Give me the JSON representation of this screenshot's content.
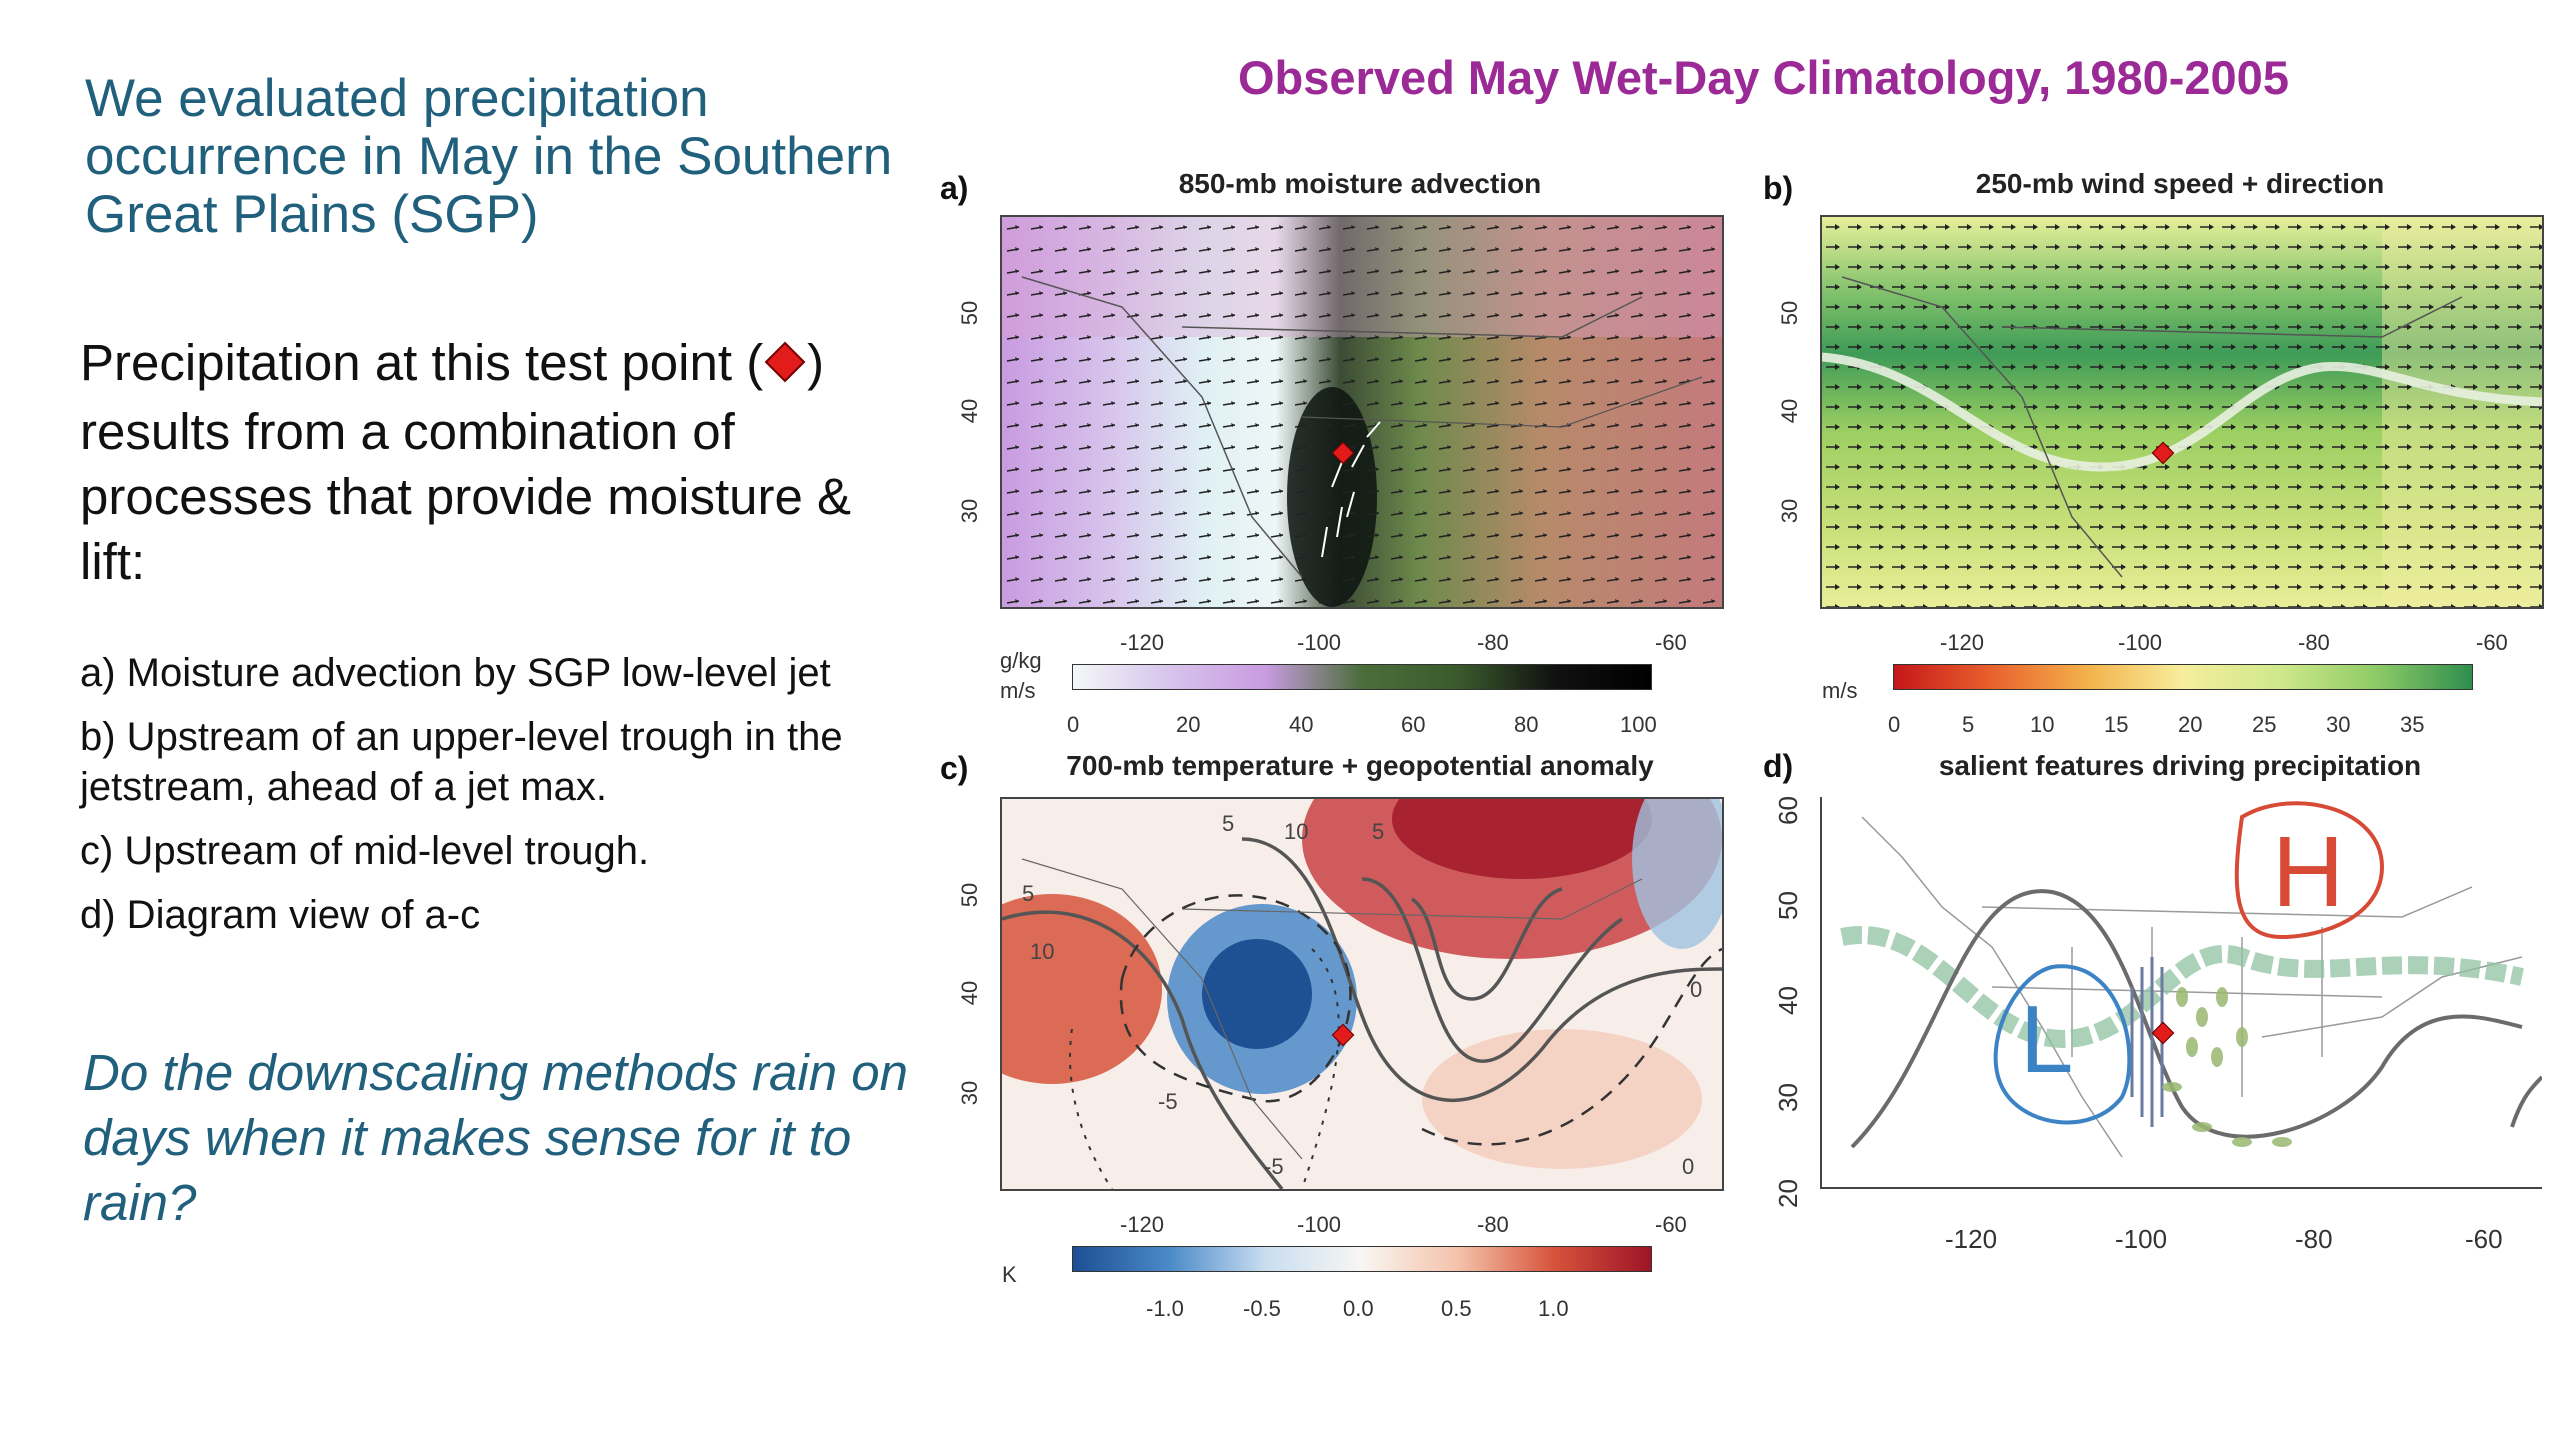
{
  "left": {
    "heading": "We evaluated precipitation occurrence in May in the Southern Great Plains (SGP)",
    "statement_before": "Precipitation at this test point (",
    "statement_after": ") results from a combination of processes that provide moisture & lift:",
    "test_point_icon": "red-diamond-icon",
    "items": [
      "a) Moisture advection by SGP low-level jet",
      "b) Upstream of an upper-level trough in the jetstream, ahead of a jet max.",
      "c) Upstream of mid-level trough.",
      "d) Diagram view of a-c"
    ],
    "question": "Do the downscaling methods rain on days when it makes sense for it to rain?"
  },
  "slide_title": "Observed May Wet-Day Climatology, 1980-2005",
  "colors": {
    "heading": "#21607d",
    "title": "#9b2a96",
    "test_point": "#e21b1b"
  },
  "panels": {
    "a": {
      "letter": "a)",
      "title": "850-mb moisture advection",
      "lon_ticks": [
        "-120",
        "-100",
        "-80",
        "-60"
      ],
      "lat_ticks": [
        "50",
        "40",
        "30"
      ],
      "colorbar_units": "g/kg\nm/s",
      "colorbar_units_line1": "g/kg",
      "colorbar_units_line2": "m/s",
      "colorbar_ticks": [
        "0",
        "20",
        "40",
        "60",
        "80",
        "100"
      ]
    },
    "b": {
      "letter": "b)",
      "title": "250-mb wind speed + direction",
      "lon_ticks": [
        "-120",
        "-100",
        "-80",
        "-60"
      ],
      "lat_ticks": [
        "50",
        "40",
        "30"
      ],
      "colorbar_units": "m/s",
      "colorbar_ticks": [
        "0",
        "5",
        "10",
        "15",
        "20",
        "25",
        "30",
        "35"
      ]
    },
    "c": {
      "letter": "c)",
      "title": "700-mb temperature + geopotential anomaly",
      "lon_ticks": [
        "-120",
        "-100",
        "-80",
        "-60"
      ],
      "lat_ticks": [
        "50",
        "40",
        "30"
      ],
      "contour_labels": [
        "5",
        "10",
        "5",
        "10",
        "5",
        "0",
        "0",
        "-5",
        "-5"
      ],
      "colorbar_units": "K",
      "colorbar_ticks": [
        "-1.0",
        "-0.5",
        "0.0",
        "0.5",
        "1.0"
      ]
    },
    "d": {
      "letter": "d)",
      "title": "salient features driving precipitation",
      "lon_ticks": [
        "-120",
        "-100",
        "-80",
        "-60"
      ],
      "lat_ticks": [
        "60",
        "50",
        "40",
        "30",
        "20"
      ],
      "high_label": "H",
      "low_label": "L"
    }
  }
}
